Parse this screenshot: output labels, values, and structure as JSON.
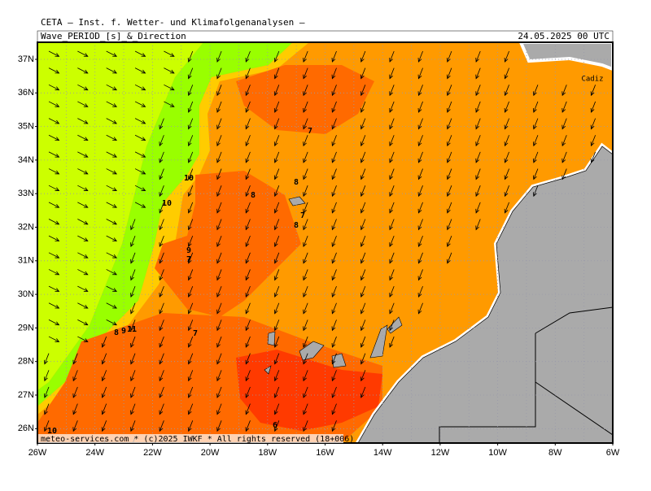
{
  "header": {
    "source": "CETA — Inst. f. Wetter- und Klimafolgenanalysen —",
    "title": "Wave_PERIOD_[s]_&_Direction",
    "date": "24.05.2025 00 UTC"
  },
  "map": {
    "lat_labels": [
      "37N",
      "36N",
      "35N",
      "34N",
      "33N",
      "32N",
      "31N",
      "30N",
      "29N",
      "28N",
      "27N",
      "26N"
    ],
    "lon_labels": [
      "26W",
      "24W",
      "22W",
      "20W",
      "18W",
      "16W",
      "14W",
      "12W",
      "10W",
      "8W",
      "6W"
    ],
    "contour_labels": [
      "7",
      "8",
      "8",
      "10",
      "10",
      "7",
      "8",
      "9",
      "7",
      "8",
      "9",
      "11",
      "7",
      "6",
      "10"
    ],
    "place": "Cadiz",
    "credit": "meteo-services.com * (c)2025 IWKF * All rights reserved (18+006)"
  }
}
